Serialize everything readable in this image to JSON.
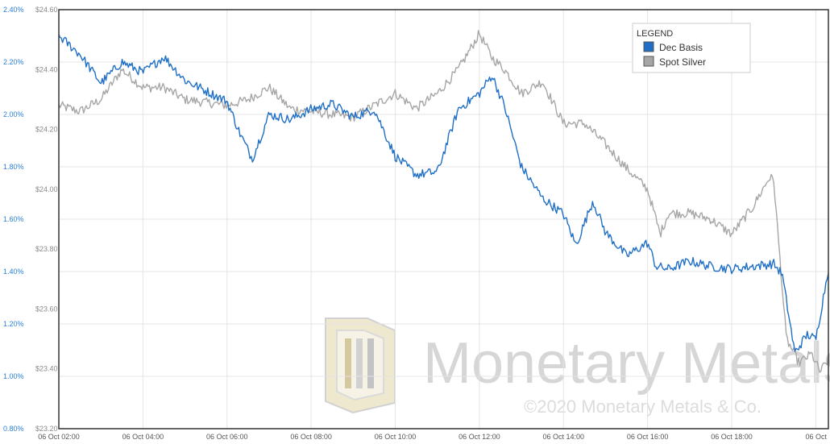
{
  "chart_data": {
    "type": "line",
    "title": "",
    "xlabel": "",
    "ylabel": "",
    "x_ticks": [
      "06 Oct 02:00",
      "06 Oct 04:00",
      "06 Oct 06:00",
      "06 Oct 08:00",
      "06 Oct 10:00",
      "06 Oct 12:00",
      "06 Oct 14:00",
      "06 Oct 16:00",
      "06 Oct 18:00",
      "06 Oct"
    ],
    "x_range_hours": [
      2.0,
      20.3
    ],
    "y_left_pct": {
      "ticks": [
        "2.40%",
        "2.20%",
        "2.00%",
        "1.80%",
        "1.60%",
        "1.40%",
        "1.20%",
        "1.00%",
        "0.80%"
      ],
      "range": [
        0.8,
        2.4
      ]
    },
    "y_left_usd": {
      "ticks": [
        "$24.60",
        "$24.40",
        "$24.20",
        "$24.00",
        "$23.80",
        "$23.60",
        "$23.40",
        "$23.20"
      ],
      "range": [
        23.2,
        24.6
      ]
    },
    "grid": true,
    "legend": {
      "title": "LEGEND",
      "placement": "top-right",
      "entries": [
        {
          "label": "Dec Basis",
          "color": "#1f6fc6"
        },
        {
          "label": "Spot Silver",
          "color": "#a6a6a6"
        }
      ]
    },
    "series": [
      {
        "name": "Dec Basis",
        "axis": "pct",
        "color": "#1f6fc6",
        "x": [
          2.0,
          2.5,
          3.0,
          3.5,
          4.0,
          4.5,
          5.0,
          5.5,
          6.0,
          6.3,
          6.6,
          7.0,
          7.5,
          8.0,
          8.5,
          9.0,
          9.5,
          10.0,
          10.5,
          11.0,
          11.5,
          12.0,
          12.3,
          12.6,
          13.0,
          13.5,
          14.0,
          14.3,
          14.7,
          15.0,
          15.5,
          16.0,
          16.2,
          16.5,
          17.0,
          17.5,
          18.0,
          18.5,
          19.0,
          19.2,
          19.5,
          19.8,
          20.0,
          20.3
        ],
        "y": [
          2.3,
          2.23,
          2.12,
          2.2,
          2.16,
          2.22,
          2.13,
          2.09,
          2.05,
          1.93,
          1.83,
          2.0,
          1.98,
          2.02,
          2.04,
          1.99,
          2.02,
          1.84,
          1.77,
          1.78,
          2.02,
          2.08,
          2.15,
          2.03,
          1.8,
          1.68,
          1.62,
          1.5,
          1.67,
          1.55,
          1.46,
          1.51,
          1.42,
          1.41,
          1.44,
          1.42,
          1.41,
          1.42,
          1.43,
          1.39,
          1.09,
          1.16,
          1.14,
          1.41
        ]
      },
      {
        "name": "Spot Silver",
        "axis": "usd",
        "color": "#a6a6a6",
        "x": [
          2.0,
          2.5,
          3.0,
          3.5,
          4.0,
          4.5,
          5.0,
          5.5,
          6.0,
          6.5,
          7.0,
          7.5,
          8.0,
          8.5,
          9.0,
          9.5,
          10.0,
          10.5,
          11.0,
          11.5,
          12.0,
          12.3,
          12.6,
          13.0,
          13.5,
          14.0,
          14.5,
          15.0,
          15.5,
          16.0,
          16.3,
          16.5,
          17.0,
          17.5,
          18.0,
          18.5,
          18.9,
          19.0,
          19.3,
          19.6,
          19.9,
          20.1,
          20.3
        ],
        "y": [
          24.28,
          24.26,
          24.3,
          24.4,
          24.34,
          24.34,
          24.3,
          24.29,
          24.28,
          24.3,
          24.34,
          24.27,
          24.26,
          24.25,
          24.24,
          24.28,
          24.32,
          24.27,
          24.32,
          24.4,
          24.52,
          24.44,
          24.4,
          24.32,
          24.36,
          24.22,
          24.22,
          24.15,
          24.07,
          24.0,
          23.85,
          23.92,
          23.92,
          23.9,
          23.85,
          23.94,
          24.04,
          24.03,
          23.5,
          23.42,
          23.45,
          23.39,
          23.43
        ]
      }
    ]
  },
  "watermark": {
    "brand": "Monetary Metals",
    "copyright": "©2020 Monetary Metals & Co."
  }
}
